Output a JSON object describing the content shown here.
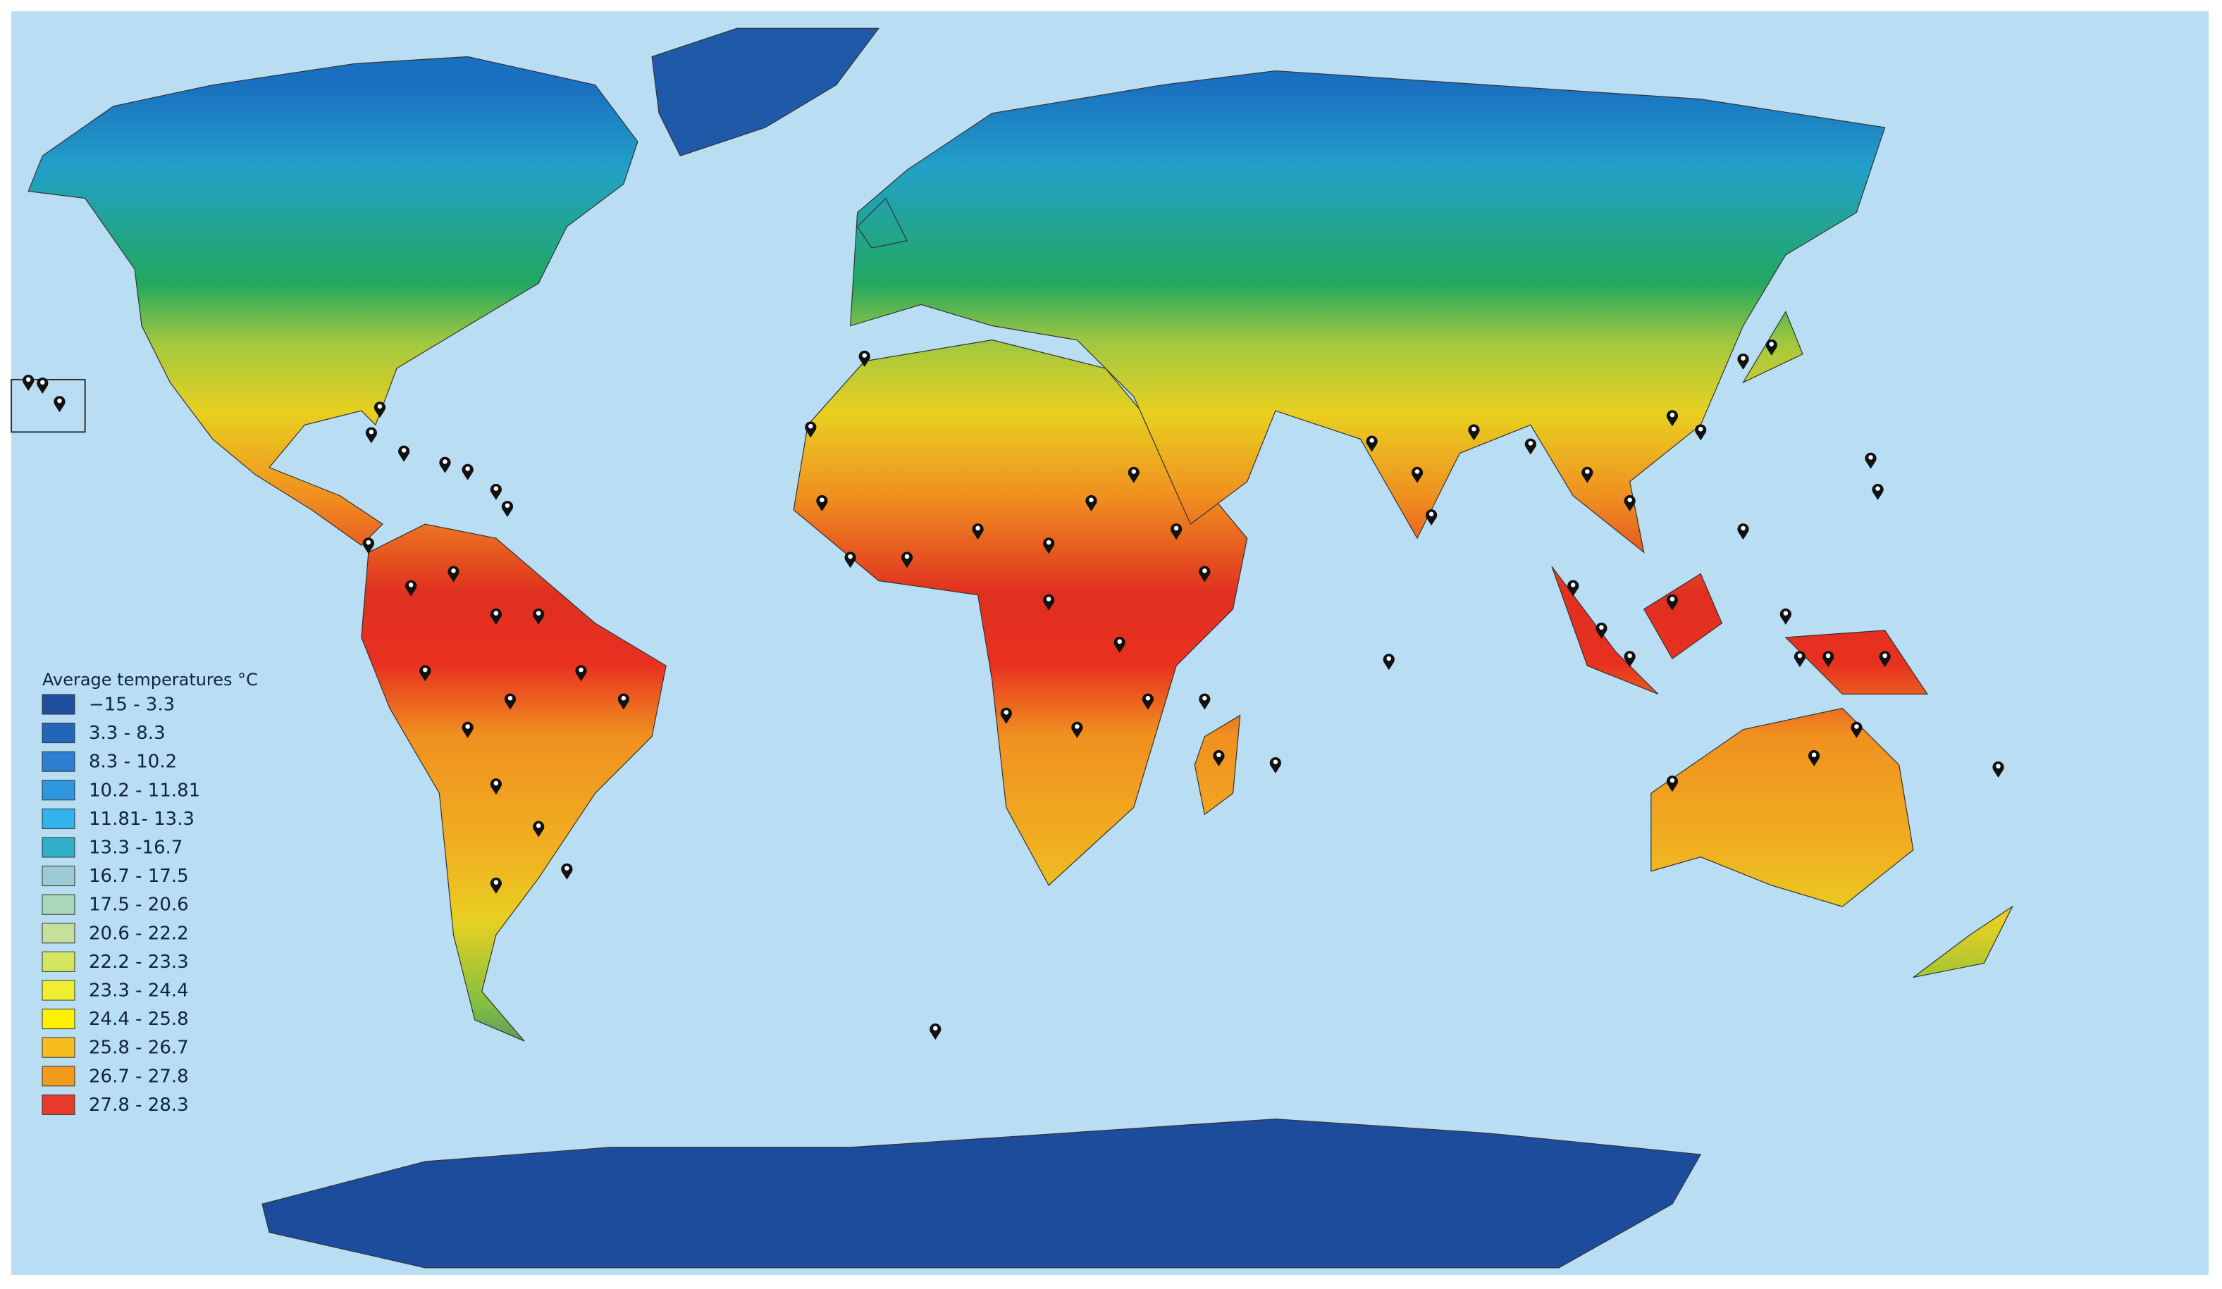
{
  "legend": {
    "title": "Average temperatures °C",
    "items": [
      {
        "label": "−15 - 3.3",
        "color": "#1f4fa0"
      },
      {
        "label": "3.3 - 8.3",
        "color": "#2366b8"
      },
      {
        "label": "8.3 - 10.2",
        "color": "#2a7fd0"
      },
      {
        "label": "10.2 - 11.81",
        "color": "#2d96de"
      },
      {
        "label": "11.81- 13.3",
        "color": "#33b4ef"
      },
      {
        "label": "13.3 -16.7",
        "color": "#2fb0c8"
      },
      {
        "label": "16.7 - 17.5",
        "color": "#9ccbd6"
      },
      {
        "label": "17.5 - 20.6",
        "color": "#a8d8b8"
      },
      {
        "label": "20.6 - 22.2",
        "color": "#c4e09a"
      },
      {
        "label": "22.2 - 23.3",
        "color": "#d4e660"
      },
      {
        "label": "23.3 - 24.4",
        "color": "#f0ee30"
      },
      {
        "label": "24.4 - 25.8",
        "color": "#fff200"
      },
      {
        "label": "25.8 - 26.7",
        "color": "#f8bc1c"
      },
      {
        "label": "26.7 - 27.8",
        "color": "#f29a1a"
      },
      {
        "label": "27.8 - 28.3",
        "color": "#e83a2c"
      }
    ]
  }
}
